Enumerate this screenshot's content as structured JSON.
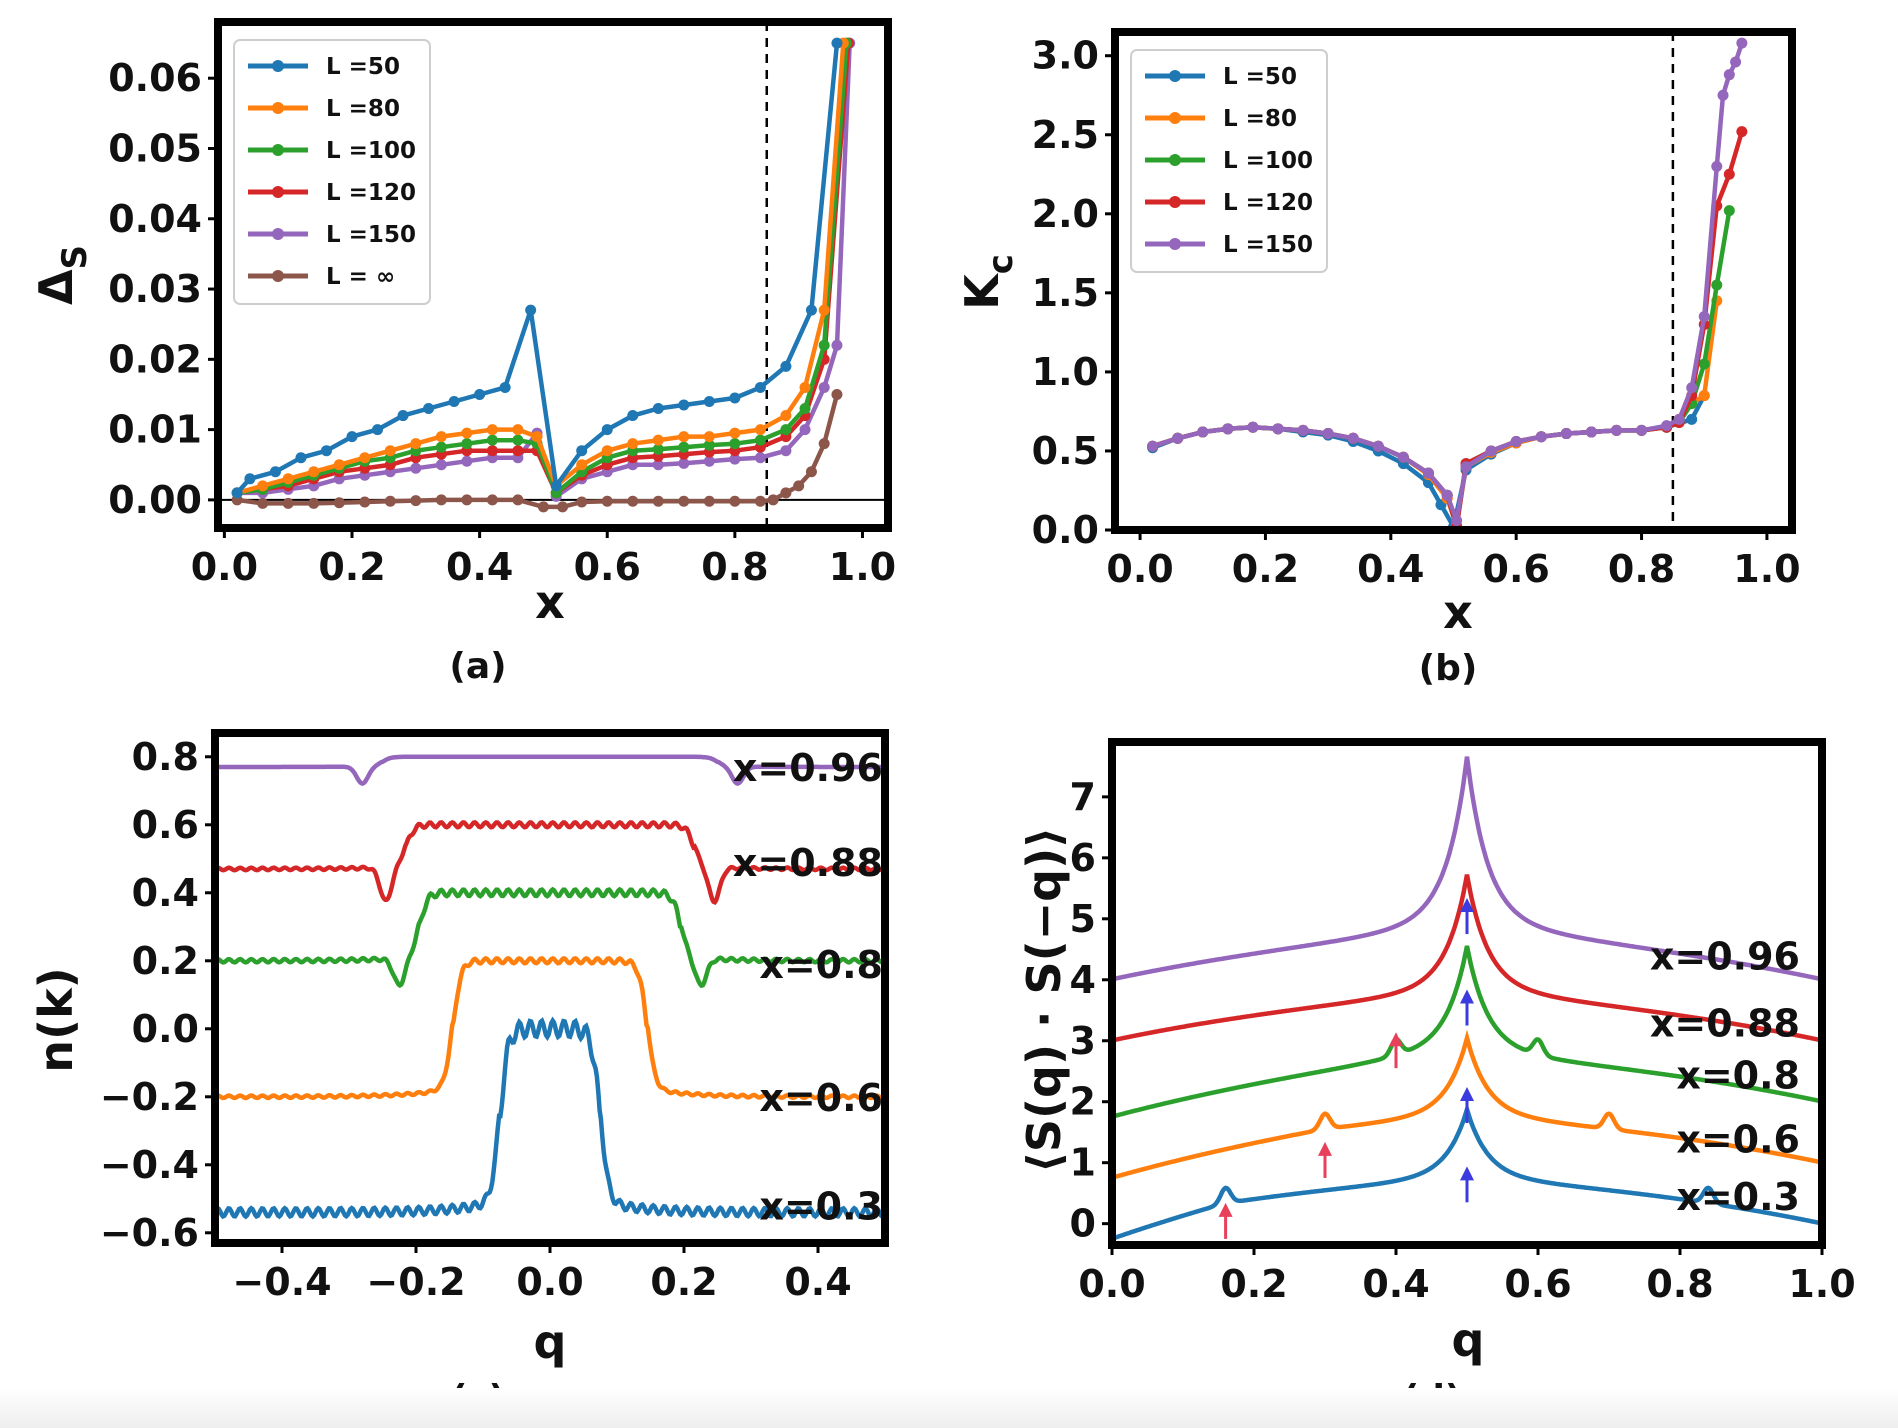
{
  "chart_data": [
    {
      "panel": "(a)",
      "type": "line",
      "xlabel": "x",
      "ylabel": "Δ_S",
      "xlim": [
        -0.01,
        1.04
      ],
      "ylim": [
        -0.004,
        0.068
      ],
      "xticks": [
        0.0,
        0.2,
        0.4,
        0.6,
        0.8,
        1.0
      ],
      "xtick_labels": [
        "0.0",
        "0.2",
        "0.4",
        "0.6",
        "0.8",
        "1.0"
      ],
      "yticks": [
        0.0,
        0.01,
        0.02,
        0.03,
        0.04,
        0.05,
        0.06
      ],
      "ytick_labels": [
        "0.00",
        "0.01",
        "0.02",
        "0.03",
        "0.04",
        "0.05",
        "0.06"
      ],
      "hline": 0.0,
      "vline": 0.85,
      "legend_position": "top-left",
      "series": [
        {
          "name": "L =50",
          "color": "#1f77b4",
          "x": [
            0.02,
            0.04,
            0.08,
            0.12,
            0.16,
            0.2,
            0.24,
            0.28,
            0.32,
            0.36,
            0.4,
            0.44,
            0.48,
            0.52,
            0.56,
            0.6,
            0.64,
            0.68,
            0.72,
            0.76,
            0.8,
            0.84,
            0.88,
            0.92,
            0.96
          ],
          "y": [
            0.001,
            0.003,
            0.004,
            0.006,
            0.007,
            0.009,
            0.01,
            0.012,
            0.013,
            0.014,
            0.015,
            0.016,
            0.027,
            0.002,
            0.007,
            0.01,
            0.012,
            0.013,
            0.0135,
            0.014,
            0.0145,
            0.016,
            0.019,
            0.027,
            0.065
          ]
        },
        {
          "name": "L =80",
          "color": "#ff7f0e",
          "x": [
            0.02,
            0.06,
            0.1,
            0.14,
            0.18,
            0.22,
            0.26,
            0.3,
            0.34,
            0.38,
            0.42,
            0.46,
            0.49,
            0.52,
            0.56,
            0.6,
            0.64,
            0.68,
            0.72,
            0.76,
            0.8,
            0.84,
            0.88,
            0.91,
            0.94,
            0.97
          ],
          "y": [
            0.001,
            0.002,
            0.003,
            0.004,
            0.005,
            0.006,
            0.007,
            0.008,
            0.009,
            0.0095,
            0.01,
            0.01,
            0.009,
            0.002,
            0.005,
            0.007,
            0.008,
            0.0085,
            0.009,
            0.009,
            0.0095,
            0.01,
            0.012,
            0.016,
            0.027,
            0.065
          ]
        },
        {
          "name": "L =100",
          "color": "#2ca02c",
          "x": [
            0.02,
            0.06,
            0.1,
            0.14,
            0.18,
            0.22,
            0.26,
            0.3,
            0.34,
            0.38,
            0.42,
            0.46,
            0.49,
            0.52,
            0.56,
            0.6,
            0.64,
            0.68,
            0.72,
            0.76,
            0.8,
            0.84,
            0.88,
            0.91,
            0.94,
            0.975
          ],
          "y": [
            0.001,
            0.0015,
            0.0025,
            0.0035,
            0.0045,
            0.0055,
            0.006,
            0.007,
            0.0075,
            0.008,
            0.0085,
            0.0085,
            0.008,
            0.001,
            0.004,
            0.006,
            0.007,
            0.0072,
            0.0075,
            0.0078,
            0.008,
            0.0085,
            0.01,
            0.013,
            0.022,
            0.065
          ]
        },
        {
          "name": "L =120",
          "color": "#d62728",
          "x": [
            0.02,
            0.06,
            0.1,
            0.14,
            0.18,
            0.22,
            0.26,
            0.3,
            0.34,
            0.38,
            0.42,
            0.46,
            0.49,
            0.52,
            0.56,
            0.6,
            0.64,
            0.68,
            0.72,
            0.76,
            0.8,
            0.84,
            0.88,
            0.91,
            0.94,
            0.978
          ],
          "y": [
            0.001,
            0.0015,
            0.002,
            0.003,
            0.004,
            0.0045,
            0.005,
            0.006,
            0.0065,
            0.007,
            0.007,
            0.007,
            0.007,
            0.001,
            0.0035,
            0.005,
            0.006,
            0.0062,
            0.0065,
            0.0068,
            0.007,
            0.0075,
            0.009,
            0.012,
            0.02,
            0.065
          ]
        },
        {
          "name": "L =150",
          "color": "#9467bd",
          "x": [
            0.02,
            0.06,
            0.1,
            0.14,
            0.18,
            0.22,
            0.26,
            0.3,
            0.34,
            0.38,
            0.42,
            0.46,
            0.49,
            0.52,
            0.56,
            0.6,
            0.64,
            0.68,
            0.72,
            0.76,
            0.8,
            0.84,
            0.88,
            0.91,
            0.94,
            0.96,
            0.98
          ],
          "y": [
            0.001,
            0.001,
            0.0015,
            0.002,
            0.003,
            0.0035,
            0.004,
            0.0045,
            0.005,
            0.0055,
            0.006,
            0.006,
            0.0095,
            0.0005,
            0.003,
            0.004,
            0.005,
            0.005,
            0.0052,
            0.0055,
            0.0058,
            0.006,
            0.007,
            0.01,
            0.016,
            0.022,
            0.065
          ]
        },
        {
          "name": "L = ∞",
          "color": "#8c564b",
          "x": [
            0.02,
            0.06,
            0.1,
            0.14,
            0.18,
            0.22,
            0.26,
            0.3,
            0.34,
            0.38,
            0.42,
            0.46,
            0.5,
            0.53,
            0.56,
            0.6,
            0.64,
            0.68,
            0.72,
            0.76,
            0.8,
            0.84,
            0.86,
            0.88,
            0.9,
            0.92,
            0.94,
            0.96
          ],
          "y": [
            0.0,
            -0.0005,
            -0.0005,
            -0.0005,
            -0.0004,
            -0.0003,
            -0.0002,
            -0.0001,
            0.0,
            0.0,
            0.0,
            0.0,
            -0.001,
            -0.001,
            -0.0003,
            -0.0002,
            -0.0002,
            -0.0002,
            -0.0002,
            -0.0002,
            -0.0002,
            -0.0002,
            0.0,
            0.001,
            0.002,
            0.004,
            0.008,
            0.015
          ]
        }
      ]
    },
    {
      "panel": "(b)",
      "type": "line",
      "xlabel": "x",
      "ylabel": "K_c",
      "xlim": [
        -0.04,
        1.04
      ],
      "ylim": [
        0.0,
        3.15
      ],
      "xticks": [
        0.0,
        0.2,
        0.4,
        0.6,
        0.8,
        1.0
      ],
      "xtick_labels": [
        "0.0",
        "0.2",
        "0.4",
        "0.6",
        "0.8",
        "1.0"
      ],
      "yticks": [
        0.0,
        0.5,
        1.0,
        1.5,
        2.0,
        2.5,
        3.0
      ],
      "ytick_labels": [
        "0.0",
        "0.5",
        "1.0",
        "1.5",
        "2.0",
        "2.5",
        "3.0"
      ],
      "vline": 0.85,
      "legend_position": "top-left",
      "series": [
        {
          "name": "L =50",
          "color": "#1f77b4",
          "x": [
            0.02,
            0.06,
            0.1,
            0.14,
            0.18,
            0.22,
            0.26,
            0.3,
            0.34,
            0.38,
            0.42,
            0.46,
            0.48,
            0.5,
            0.52,
            0.56,
            0.6,
            0.64,
            0.68,
            0.72,
            0.76,
            0.8,
            0.84,
            0.88,
            0.9
          ],
          "y": [
            0.52,
            0.58,
            0.62,
            0.64,
            0.65,
            0.64,
            0.62,
            0.6,
            0.56,
            0.5,
            0.42,
            0.3,
            0.16,
            0.02,
            0.38,
            0.48,
            0.55,
            0.59,
            0.61,
            0.62,
            0.63,
            0.63,
            0.65,
            0.7,
            0.85
          ]
        },
        {
          "name": "L =80",
          "color": "#ff7f0e",
          "x": [
            0.02,
            0.06,
            0.1,
            0.14,
            0.18,
            0.22,
            0.26,
            0.3,
            0.34,
            0.38,
            0.42,
            0.46,
            0.49,
            0.505,
            0.52,
            0.56,
            0.6,
            0.64,
            0.68,
            0.72,
            0.76,
            0.8,
            0.84,
            0.86,
            0.88,
            0.9,
            0.92
          ],
          "y": [
            0.53,
            0.58,
            0.62,
            0.64,
            0.65,
            0.64,
            0.63,
            0.61,
            0.58,
            0.53,
            0.46,
            0.35,
            0.2,
            0.03,
            0.4,
            0.49,
            0.55,
            0.59,
            0.61,
            0.62,
            0.63,
            0.63,
            0.65,
            0.7,
            0.8,
            0.85,
            1.45
          ]
        },
        {
          "name": "L =100",
          "color": "#2ca02c",
          "x": [
            0.02,
            0.06,
            0.1,
            0.14,
            0.18,
            0.22,
            0.26,
            0.3,
            0.34,
            0.38,
            0.42,
            0.46,
            0.49,
            0.505,
            0.52,
            0.56,
            0.6,
            0.64,
            0.68,
            0.72,
            0.76,
            0.8,
            0.84,
            0.86,
            0.88,
            0.9,
            0.92,
            0.94
          ],
          "y": [
            0.53,
            0.58,
            0.62,
            0.64,
            0.65,
            0.64,
            0.63,
            0.61,
            0.58,
            0.53,
            0.46,
            0.36,
            0.22,
            0.02,
            0.42,
            0.5,
            0.56,
            0.59,
            0.61,
            0.62,
            0.63,
            0.63,
            0.65,
            0.68,
            0.8,
            1.05,
            1.55,
            2.02
          ]
        },
        {
          "name": "L =120",
          "color": "#d62728",
          "x": [
            0.02,
            0.06,
            0.1,
            0.14,
            0.18,
            0.22,
            0.26,
            0.3,
            0.34,
            0.38,
            0.42,
            0.46,
            0.49,
            0.505,
            0.52,
            0.56,
            0.6,
            0.64,
            0.68,
            0.72,
            0.76,
            0.8,
            0.84,
            0.86,
            0.88,
            0.9,
            0.92,
            0.94,
            0.96
          ],
          "y": [
            0.53,
            0.58,
            0.62,
            0.64,
            0.65,
            0.64,
            0.63,
            0.61,
            0.58,
            0.53,
            0.46,
            0.36,
            0.22,
            0.02,
            0.42,
            0.5,
            0.56,
            0.59,
            0.61,
            0.62,
            0.63,
            0.63,
            0.65,
            0.68,
            0.85,
            1.3,
            2.05,
            2.25,
            2.52
          ]
        },
        {
          "name": "L =150",
          "color": "#9467bd",
          "x": [
            0.02,
            0.06,
            0.1,
            0.14,
            0.18,
            0.22,
            0.26,
            0.3,
            0.34,
            0.38,
            0.42,
            0.46,
            0.49,
            0.505,
            0.52,
            0.56,
            0.6,
            0.64,
            0.68,
            0.72,
            0.76,
            0.8,
            0.84,
            0.86,
            0.88,
            0.9,
            0.92,
            0.93,
            0.94,
            0.95,
            0.96
          ],
          "y": [
            0.53,
            0.58,
            0.62,
            0.64,
            0.65,
            0.64,
            0.63,
            0.61,
            0.58,
            0.53,
            0.46,
            0.36,
            0.22,
            0.06,
            0.4,
            0.5,
            0.56,
            0.59,
            0.61,
            0.62,
            0.63,
            0.63,
            0.66,
            0.7,
            0.9,
            1.35,
            2.3,
            2.75,
            2.88,
            2.96,
            3.08
          ]
        }
      ]
    },
    {
      "panel": "(c)",
      "type": "line",
      "xlabel": "q",
      "ylabel": "n(k)",
      "xlim": [
        -0.5,
        0.5
      ],
      "ylim": [
        -0.63,
        0.87
      ],
      "xticks": [
        -0.4,
        -0.2,
        0.0,
        0.2,
        0.4
      ],
      "xtick_labels": [
        "−0.4",
        "−0.2",
        "0.0",
        "0.2",
        "0.4"
      ],
      "yticks": [
        -0.6,
        -0.4,
        -0.2,
        0.0,
        0.2,
        0.4,
        0.6,
        0.8
      ],
      "ytick_labels": [
        "−0.6",
        "−0.4",
        "−0.2",
        "0.0",
        "0.2",
        "0.4",
        "0.6",
        "0.8"
      ],
      "series": [
        {
          "name": "x=0.96",
          "color": "#9467bd",
          "baseline": 0.77,
          "plateau": 0.8,
          "edge": 0.25,
          "dip": 0.05,
          "ripple": 0.0,
          "label_y": 0.77
        },
        {
          "name": "x=0.88",
          "color": "#d62728",
          "baseline": 0.47,
          "plateau": 0.6,
          "edge": 0.215,
          "dip": 0.1,
          "ripple": 0.006,
          "label_y": 0.49
        },
        {
          "name": "x=0.8",
          "color": "#2ca02c",
          "baseline": 0.2,
          "plateau": 0.4,
          "edge": 0.195,
          "dip": 0.08,
          "ripple": 0.008,
          "label_y": 0.19
        },
        {
          "name": "x=0.6",
          "color": "#ff7f0e",
          "baseline": -0.2,
          "plateau": 0.2,
          "edge": 0.145,
          "dip": 0.0,
          "ripple": 0.006,
          "label_y": -0.2
        },
        {
          "name": "x=0.3",
          "color": "#1f77b4",
          "baseline": -0.54,
          "plateau": 0.0,
          "edge": 0.075,
          "dip": 0.0,
          "ripple": 0.02,
          "label_y": -0.52
        }
      ]
    },
    {
      "panel": "(d)",
      "type": "line",
      "xlabel": "q",
      "ylabel": "⟨S(q) · S(−q)⟩",
      "xlim": [
        0.0,
        1.0
      ],
      "ylim": [
        -0.35,
        7.9
      ],
      "xticks": [
        0.0,
        0.2,
        0.4,
        0.6,
        0.8,
        1.0
      ],
      "xtick_labels": [
        "0.0",
        "0.2",
        "0.4",
        "0.6",
        "0.8",
        "1.0"
      ],
      "yticks": [
        0,
        1,
        2,
        3,
        4,
        5,
        6,
        7
      ],
      "ytick_labels": [
        "0",
        "1",
        "2",
        "3",
        "4",
        "5",
        "6",
        "7"
      ],
      "series": [
        {
          "name": "x=0.96",
          "color": "#9467bd",
          "offset": 4,
          "peak": 3.6,
          "shoulder": null,
          "label_y": 4.4
        },
        {
          "name": "x=0.88",
          "color": "#d62728",
          "offset": 3,
          "peak": 2.5,
          "shoulder": null,
          "label_y": 3.3
        },
        {
          "name": "x=0.8",
          "color": "#2ca02c",
          "offset": 2,
          "peak": 2.3,
          "shoulder": 0.4,
          "label_y": 2.45
        },
        {
          "name": "x=0.6",
          "color": "#ff7f0e",
          "offset": 1,
          "peak": 1.7,
          "shoulder": 0.3,
          "label_y": 1.4
        },
        {
          "name": "x=0.3",
          "color": "#1f77b4",
          "offset": 0,
          "peak": 1.5,
          "shoulder": 0.16,
          "label_y": 0.45
        }
      ],
      "arrows": [
        {
          "q": 0.16,
          "y": -0.25,
          "color": "#e8405a"
        },
        {
          "q": 0.3,
          "y": 0.75,
          "color": "#e8405a"
        },
        {
          "q": 0.4,
          "y": 2.55,
          "color": "#e8405a"
        },
        {
          "q": 0.5,
          "y": 0.35,
          "color": "#3b3be0"
        },
        {
          "q": 0.5,
          "y": 1.65,
          "color": "#3b3be0"
        },
        {
          "q": 0.5,
          "y": 3.25,
          "color": "#3b3be0"
        },
        {
          "q": 0.5,
          "y": 4.75,
          "color": "#3b3be0"
        }
      ]
    }
  ]
}
